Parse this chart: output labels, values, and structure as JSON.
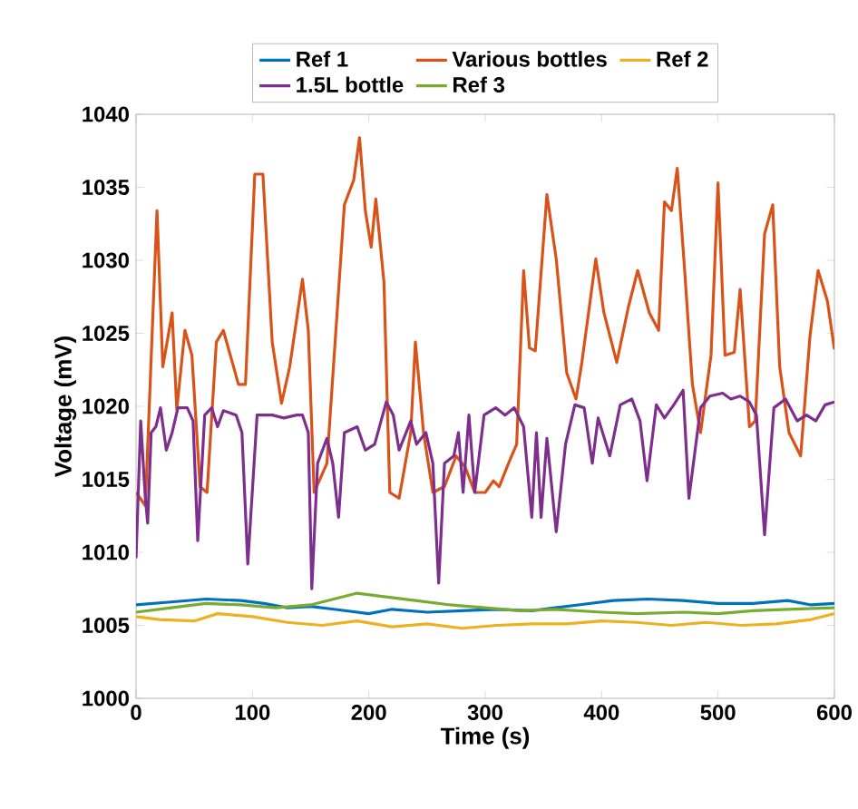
{
  "chart_data": {
    "type": "line",
    "xlabel": "Time (s)",
    "ylabel": "Voltage (mV)",
    "xlim": [
      0,
      600
    ],
    "xticks": [
      0,
      100,
      200,
      300,
      400,
      500,
      600
    ],
    "ylim": [
      1000,
      1040
    ],
    "yticks": [
      1000,
      1005,
      1010,
      1015,
      1020,
      1025,
      1030,
      1035,
      1040
    ],
    "grid": false,
    "legend": "top",
    "series": [
      {
        "name": "Ref 1",
        "color": "#0072bd",
        "x": [
          0,
          30,
          60,
          90,
          110,
          130,
          150,
          170,
          200,
          220,
          250,
          280,
          310,
          340,
          360,
          380,
          410,
          440,
          470,
          500,
          530,
          560,
          580,
          600
        ],
        "values": [
          1006.4,
          1006.6,
          1006.8,
          1006.7,
          1006.5,
          1006.2,
          1006.3,
          1006.1,
          1005.8,
          1006.1,
          1005.9,
          1006.0,
          1006.1,
          1006.0,
          1006.2,
          1006.4,
          1006.7,
          1006.8,
          1006.7,
          1006.5,
          1006.5,
          1006.7,
          1006.4,
          1006.5
        ]
      },
      {
        "name": "Various bottles",
        "color": "#d95319",
        "x": [
          0,
          8,
          18,
          23,
          31,
          35,
          42,
          48,
          55,
          61,
          69,
          75,
          88,
          94,
          102,
          109,
          117,
          125,
          132,
          143,
          148,
          153,
          164,
          179,
          187,
          192,
          197,
          202,
          206,
          213,
          218,
          226,
          236,
          240,
          247,
          255,
          265,
          275,
          283,
          291,
          300,
          307,
          312,
          320,
          327,
          333,
          338,
          343,
          353,
          361,
          370,
          378,
          383,
          395,
          402,
          413,
          423,
          431,
          441,
          449,
          454,
          460,
          465,
          471,
          478,
          485,
          494,
          500,
          506,
          514,
          519,
          527,
          532,
          540,
          547,
          553,
          561,
          571,
          579,
          586,
          594,
          600
        ],
        "values": [
          1014.1,
          1013.2,
          1033.4,
          1022.7,
          1026.4,
          1019.8,
          1025.2,
          1023.5,
          1014.5,
          1014.1,
          1024.4,
          1025.2,
          1021.5,
          1021.5,
          1035.9,
          1035.9,
          1024.4,
          1020.2,
          1022.7,
          1028.7,
          1025.2,
          1014.1,
          1016.1,
          1033.8,
          1035.5,
          1038.4,
          1033.4,
          1030.9,
          1034.2,
          1028.5,
          1014.1,
          1013.7,
          1018.2,
          1024.4,
          1018.2,
          1014.1,
          1014.5,
          1016.6,
          1015.8,
          1014.1,
          1014.1,
          1014.9,
          1014.5,
          1016.1,
          1017.4,
          1029.3,
          1024.0,
          1023.8,
          1034.5,
          1030.1,
          1022.3,
          1020.5,
          1023.0,
          1030.1,
          1026.4,
          1023.0,
          1026.8,
          1029.3,
          1026.4,
          1025.2,
          1034.0,
          1033.4,
          1036.3,
          1029.7,
          1021.5,
          1018.2,
          1023.5,
          1035.3,
          1023.5,
          1023.7,
          1028.0,
          1018.6,
          1019.0,
          1031.8,
          1033.8,
          1022.7,
          1018.2,
          1016.6,
          1024.8,
          1029.3,
          1027.2,
          1023.9
        ]
      },
      {
        "name": "Ref 2",
        "color": "#edb120",
        "x": [
          0,
          20,
          50,
          70,
          100,
          130,
          160,
          190,
          220,
          250,
          280,
          310,
          340,
          370,
          400,
          430,
          460,
          490,
          520,
          550,
          580,
          600
        ],
        "values": [
          1005.6,
          1005.4,
          1005.3,
          1005.8,
          1005.6,
          1005.2,
          1005.0,
          1005.3,
          1004.9,
          1005.1,
          1004.8,
          1005.0,
          1005.1,
          1005.1,
          1005.3,
          1005.2,
          1005.0,
          1005.2,
          1005.0,
          1005.1,
          1005.4,
          1005.8
        ]
      },
      {
        "name": "1.5L bottle",
        "color": "#7e2f8e",
        "x": [
          0,
          4,
          8,
          10,
          13,
          17,
          21,
          26,
          31,
          36,
          44,
          49,
          53,
          59,
          65,
          70,
          75,
          86,
          91,
          96,
          104,
          117,
          127,
          138,
          143,
          148,
          151,
          156,
          164,
          169,
          174,
          179,
          190,
          197,
          205,
          215,
          221,
          226,
          236,
          241,
          249,
          255,
          260,
          265,
          273,
          277,
          281,
          286,
          291,
          299,
          309,
          317,
          325,
          333,
          340,
          344,
          348,
          353,
          361,
          369,
          377,
          385,
          392,
          397,
          407,
          416,
          426,
          433,
          439,
          447,
          454,
          462,
          470,
          475,
          485,
          493,
          504,
          511,
          519,
          527,
          533,
          540,
          548,
          558,
          568,
          576,
          584,
          592,
          600
        ],
        "values": [
          1009.6,
          1019.0,
          1013.7,
          1012.0,
          1018.2,
          1018.6,
          1019.9,
          1017.0,
          1018.2,
          1019.9,
          1019.9,
          1019.0,
          1010.8,
          1019.4,
          1019.9,
          1018.6,
          1019.7,
          1019.4,
          1018.2,
          1009.2,
          1019.4,
          1019.4,
          1019.2,
          1019.4,
          1019.4,
          1018.2,
          1007.5,
          1016.1,
          1017.8,
          1016.1,
          1012.4,
          1018.2,
          1018.6,
          1017.0,
          1017.4,
          1020.3,
          1019.4,
          1017.0,
          1019.0,
          1017.4,
          1018.2,
          1016.1,
          1007.9,
          1016.1,
          1016.6,
          1018.2,
          1014.1,
          1019.4,
          1014.1,
          1019.4,
          1019.9,
          1019.4,
          1019.9,
          1018.6,
          1012.4,
          1018.2,
          1012.4,
          1017.8,
          1011.4,
          1017.4,
          1020.1,
          1019.9,
          1016.1,
          1019.2,
          1016.6,
          1020.1,
          1020.5,
          1019.0,
          1014.9,
          1020.1,
          1019.2,
          1020.1,
          1021.1,
          1013.7,
          1019.9,
          1020.7,
          1020.9,
          1020.5,
          1020.7,
          1020.3,
          1019.4,
          1011.2,
          1019.9,
          1020.5,
          1019.0,
          1019.4,
          1019.0,
          1020.1,
          1020.3
        ]
      },
      {
        "name": "Ref 3",
        "color": "#77ac30",
        "x": [
          0,
          30,
          60,
          90,
          120,
          150,
          170,
          190,
          210,
          240,
          270,
          300,
          330,
          360,
          400,
          430,
          470,
          500,
          530,
          560,
          600
        ],
        "values": [
          1005.9,
          1006.2,
          1006.5,
          1006.4,
          1006.2,
          1006.4,
          1006.8,
          1007.2,
          1007.0,
          1006.7,
          1006.4,
          1006.2,
          1006.0,
          1006.1,
          1005.9,
          1005.8,
          1005.9,
          1005.8,
          1006.0,
          1006.1,
          1006.2
        ]
      }
    ]
  }
}
